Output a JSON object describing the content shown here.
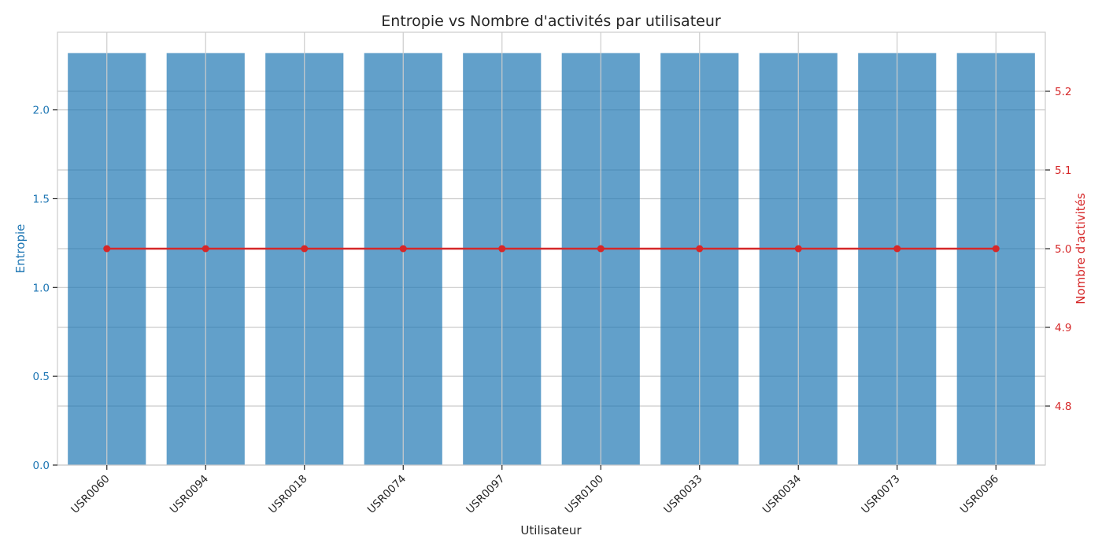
{
  "chart_data": {
    "type": "bar",
    "title": "Entropie vs Nombre d'activités par utilisateur",
    "xlabel": "Utilisateur",
    "categories": [
      "USR0060",
      "USR0094",
      "USR0018",
      "USR0074",
      "USR0097",
      "USR0100",
      "USR0033",
      "USR0034",
      "USR0073",
      "USR0096"
    ],
    "left_axis": {
      "label": "Entropie",
      "color": "#1f77b4",
      "ylim": [
        0,
        2.437
      ],
      "ticks": [
        0.0,
        0.5,
        1.0,
        1.5,
        2.0
      ],
      "tick_labels": [
        "0.0",
        "0.5",
        "1.0",
        "1.5",
        "2.0"
      ]
    },
    "right_axis": {
      "label": "Nombre d'activités",
      "color": "#d62728",
      "ylim": [
        4.725,
        5.275
      ],
      "ticks": [
        4.8,
        4.9,
        5.0,
        5.1,
        5.2
      ],
      "tick_labels": [
        "4.8",
        "4.9",
        "5.0",
        "5.1",
        "5.2"
      ]
    },
    "series": [
      {
        "type": "bar",
        "axis": "left",
        "color": "#1f77b4",
        "values": [
          2.32,
          2.32,
          2.32,
          2.32,
          2.32,
          2.32,
          2.32,
          2.32,
          2.32,
          2.32
        ]
      },
      {
        "type": "line",
        "axis": "right",
        "color": "#d62728",
        "values": [
          5,
          5,
          5,
          5,
          5,
          5,
          5,
          5,
          5,
          5
        ]
      }
    ],
    "grid": true,
    "legend": "none"
  }
}
